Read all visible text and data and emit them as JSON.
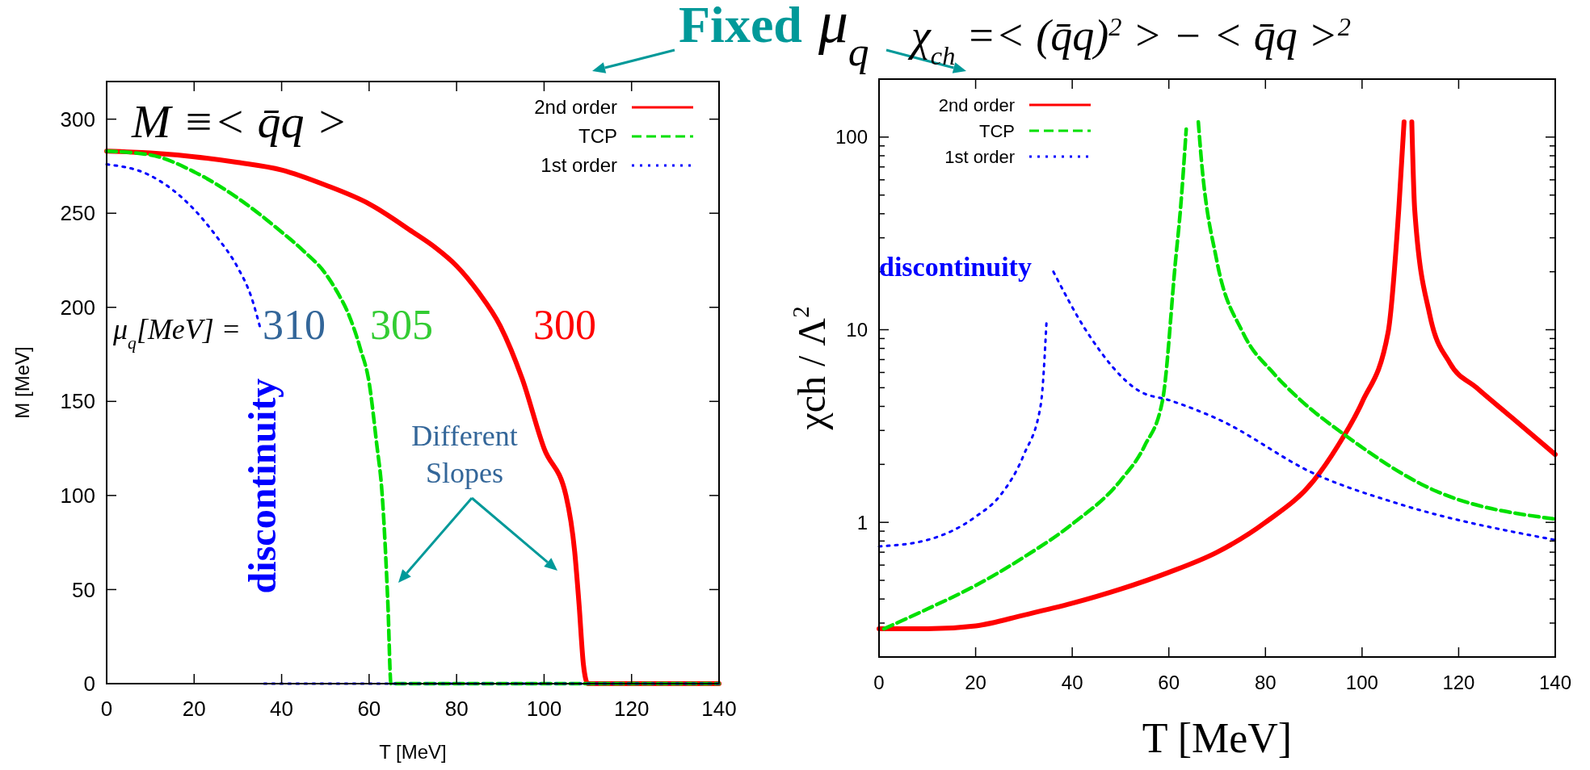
{
  "chart_data": [
    {
      "type": "line",
      "xlabel": "T [MeV]",
      "ylabel": "M [MeV]",
      "xlim": [
        0,
        140
      ],
      "ylim": [
        0,
        320
      ],
      "xticks": [
        0,
        20,
        40,
        60,
        80,
        100,
        120,
        140
      ],
      "yticks": [
        0,
        50,
        100,
        150,
        200,
        250,
        300
      ],
      "legend": "top right",
      "series": [
        {
          "name": "2nd order",
          "color": "#ff0000",
          "line_style": "solid",
          "x": [
            0,
            10,
            20,
            30,
            40,
            50,
            60,
            70,
            75,
            80,
            85,
            90,
            95,
            100,
            105,
            107,
            108,
            109,
            110,
            120,
            130,
            140
          ],
          "values": [
            283,
            282,
            280,
            277,
            273,
            265,
            255,
            240,
            232,
            222,
            208,
            190,
            162,
            125,
            100,
            70,
            42,
            10,
            0,
            0,
            0,
            0
          ]
        },
        {
          "name": "TCP",
          "color": "#00e000",
          "line_style": "dashed",
          "x": [
            0,
            10,
            20,
            30,
            40,
            45,
            50,
            53,
            55,
            58,
            60,
            61.7,
            63,
            64.3,
            65,
            80,
            100,
            120,
            140
          ],
          "values": [
            283,
            281,
            272,
            258,
            240,
            230,
            218,
            207,
            198,
            178,
            160,
            128,
            100,
            42,
            0,
            0,
            0,
            0,
            0
          ]
        },
        {
          "name": "1st order",
          "color": "#0000ff",
          "line_style": "dotted",
          "x": [
            0,
            10,
            20,
            25,
            30,
            33,
            35,
            35.5,
            36,
            140
          ],
          "values": [
            276,
            270,
            252,
            238,
            221,
            206,
            190,
            null,
            0,
            0
          ]
        }
      ],
      "annotations": [
        "M ≡< q̄q >",
        "μ$_{q}$[MeV] =",
        "310",
        "305",
        "300",
        "discontinuity",
        "Different Slopes",
        "Fixed μ$_{q}$"
      ]
    },
    {
      "type": "line",
      "title": "χ$_{ch}$ =< (q̄q)$^{2}$ > − < q̄q >$^{2}$",
      "xlabel": "T [MeV]",
      "ylabel": "χch / Λ$^{2}$",
      "log": "y",
      "xlim": [
        0,
        140
      ],
      "ylim": [
        0.2,
        200
      ],
      "xticks": [
        0,
        20,
        40,
        60,
        80,
        100,
        120,
        140
      ],
      "yticks": [
        {
          "value": 0.3,
          "label": null
        },
        {
          "value": 0.4,
          "label": null
        },
        {
          "value": 0.5,
          "label": null
        },
        {
          "value": 0.6,
          "label": null
        },
        {
          "value": 0.7,
          "label": null
        },
        {
          "value": 0.8,
          "label": null
        },
        {
          "value": 0.9,
          "label": null
        },
        1,
        {
          "value": 2,
          "label": null
        },
        {
          "value": 3,
          "label": null
        },
        {
          "value": 4,
          "label": null
        },
        {
          "value": 5,
          "label": null
        },
        {
          "value": 6,
          "label": null
        },
        {
          "value": 7,
          "label": null
        },
        {
          "value": 8,
          "label": null
        },
        {
          "value": 9,
          "label": null
        },
        10,
        {
          "value": 20,
          "label": null
        },
        {
          "value": 30,
          "label": null
        },
        {
          "value": 40,
          "label": null
        },
        {
          "value": 50,
          "label": null
        },
        {
          "value": 60,
          "label": null
        },
        {
          "value": 70,
          "label": null
        },
        {
          "value": 80,
          "label": null
        },
        {
          "value": 90,
          "label": null
        },
        100
      ],
      "legend": "top left",
      "series": [
        {
          "name": "2nd order",
          "color": "#ff0000",
          "line_style": "solid",
          "x": [
            0,
            10,
            20,
            30,
            40,
            50,
            60,
            70,
            80,
            90,
            95,
            100,
            105.4,
            107.6,
            108.7,
            109.5,
            110.3,
            110.9,
            114,
            118.2,
            123.7,
            131,
            140
          ],
          "values": [
            0.28,
            0.28,
            0.29,
            0.33,
            0.38,
            0.45,
            0.55,
            0.7,
            1.0,
            1.65,
            2.5,
            4.2,
            9.7,
            42,
            120,
            null,
            120,
            42,
            12,
            6.7,
            5.0,
            3.5,
            2.25
          ]
        },
        {
          "name": "TCP",
          "color": "#00e000",
          "line_style": "dashed",
          "x": [
            1,
            10,
            20,
            30,
            40,
            50,
            55,
            58.7,
            61.4,
            62.4,
            63.6,
            64.9,
            66.1,
            66.7,
            69.9,
            75.3,
            81.8,
            87.1,
            96.8,
            112.9,
            140
          ],
          "values": [
            0.28,
            0.355,
            0.47,
            0.66,
            0.98,
            1.65,
            2.5,
            4.3,
            23,
            42,
            110,
            null,
            120,
            78,
            23,
            9.7,
            5.9,
            4.35,
            2.8,
            1.55,
            1.04
          ]
        },
        {
          "name": "1st order",
          "color": "#0000ff",
          "line_style": "dotted",
          "x": [
            0,
            10,
            20,
            25,
            30,
            33.5,
            34.7,
            35.4,
            36.1,
            43.1,
            53.9,
            60.2,
            69.9,
            90.3,
            107.5,
            140
          ],
          "values": [
            0.75,
            0.81,
            1.07,
            1.37,
            2.25,
            4.1,
            11.3,
            null,
            20,
            9.7,
            4.8,
            4.3,
            3.46,
            1.78,
            1.25,
            0.81
          ]
        }
      ],
      "annotations": [
        "discontinuity"
      ]
    }
  ]
}
